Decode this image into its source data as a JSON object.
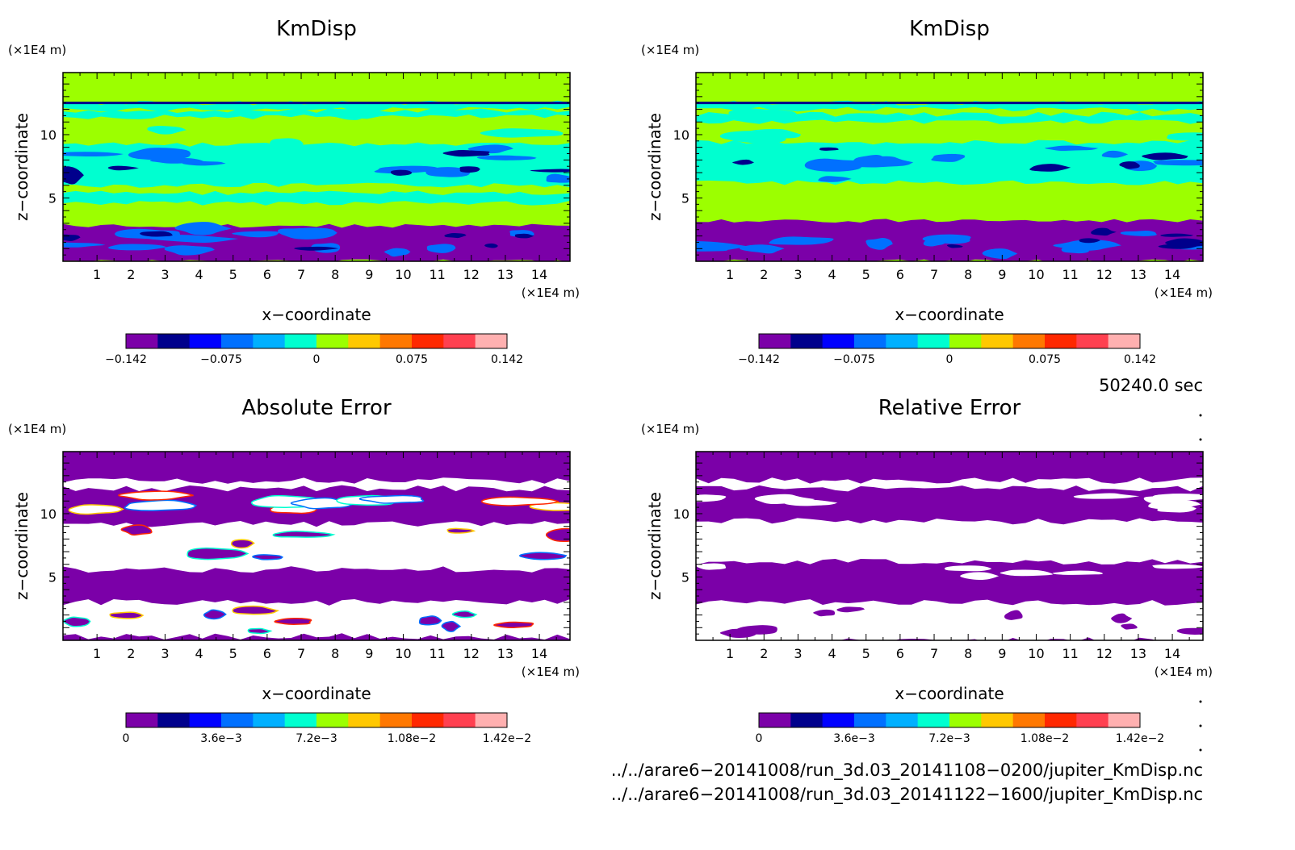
{
  "panels": [
    {
      "title": "KmDisp",
      "x_unit": "(×1E4 m)",
      "z_unit": "(×1E4 m)",
      "xlabel": "x−coordinate",
      "ylabel": "z−coordinate",
      "colorbar_ticks": [
        "−0.142",
        "−0.075",
        "0",
        "0.075",
        "0.142"
      ]
    },
    {
      "title": "KmDisp",
      "x_unit": "(×1E4 m)",
      "z_unit": "(×1E4 m)",
      "xlabel": "x−coordinate",
      "ylabel": "z−coordinate",
      "colorbar_ticks": [
        "−0.142",
        "−0.075",
        "0",
        "0.075",
        "0.142"
      ]
    },
    {
      "title": "Absolute Error",
      "x_unit": "(×1E4 m)",
      "z_unit": "(×1E4 m)",
      "xlabel": "x−coordinate",
      "ylabel": "z−coordinate",
      "colorbar_ticks": [
        "0",
        "3.6e−3",
        "7.2e−3",
        "1.08e−2",
        "1.42e−2"
      ]
    },
    {
      "title": "Relative Error",
      "x_unit": "(×1E4 m)",
      "z_unit": "(×1E4 m)",
      "xlabel": "x−coordinate",
      "ylabel": "z−coordinate",
      "colorbar_ticks": [
        "0",
        "3.6e−3",
        "7.2e−3",
        "1.08e−2",
        "1.42e−2"
      ]
    }
  ],
  "time_label": "50240.0 sec",
  "file_paths": [
    "../../arare6−20141008/run_3d.03_20141108−0200/jupiter_KmDisp.nc",
    "../../arare6−20141008/run_3d.03_20141122−1600/jupiter_KmDisp.nc"
  ],
  "colorbar_colors": [
    "#7b00a8",
    "#00008c",
    "#0000ff",
    "#0070ff",
    "#00b0ff",
    "#00ffd0",
    "#9cff00",
    "#ffc800",
    "#ff7800",
    "#ff2800",
    "#ff4050",
    "#ffb0b0"
  ],
  "chart_data": [
    {
      "type": "heatmap",
      "title": "KmDisp",
      "xlabel": "x−coordinate",
      "ylabel": "z−coordinate",
      "xlim": [
        0,
        14.9
      ],
      "ylim": [
        0,
        14.9
      ],
      "xticks": [
        1,
        2,
        3,
        4,
        5,
        6,
        7,
        8,
        9,
        10,
        11,
        12,
        13,
        14
      ],
      "yticks": [
        5,
        10
      ],
      "colorbar_range": [
        -0.142,
        0.142
      ],
      "colorbar_ticks": [
        -0.142,
        -0.075,
        0,
        0.075,
        0.142
      ],
      "regions": [
        {
          "z_range": [
            0,
            2.8
          ],
          "value": -0.142,
          "note": "purple lower layer with blue eddies"
        },
        {
          "z_range": [
            2.8,
            14.9
          ],
          "value": 0.01,
          "note": "green background with cyan/blue bands near z≈5, 7–9, 12"
        }
      ]
    },
    {
      "type": "heatmap",
      "title": "KmDisp",
      "xlabel": "x−coordinate",
      "ylabel": "z−coordinate",
      "xlim": [
        0,
        14.9
      ],
      "ylim": [
        0,
        14.9
      ],
      "xticks": [
        1,
        2,
        3,
        4,
        5,
        6,
        7,
        8,
        9,
        10,
        11,
        12,
        13,
        14
      ],
      "yticks": [
        5,
        10
      ],
      "colorbar_range": [
        -0.142,
        0.142
      ],
      "colorbar_ticks": [
        -0.142,
        -0.075,
        0,
        0.075,
        0.142
      ],
      "regions": [
        {
          "z_range": [
            0,
            3.2
          ],
          "value": -0.142,
          "note": "purple lower layer with blue eddies"
        },
        {
          "z_range": [
            3.2,
            14.9
          ],
          "value": 0.01,
          "note": "green background with cyan/blue bands near z≈6–9, 12"
        }
      ]
    },
    {
      "type": "heatmap",
      "title": "Absolute Error",
      "xlabel": "x−coordinate",
      "ylabel": "z−coordinate",
      "xlim": [
        0,
        14.9
      ],
      "ylim": [
        0,
        14.9
      ],
      "xticks": [
        1,
        2,
        3,
        4,
        5,
        6,
        7,
        8,
        9,
        10,
        11,
        12,
        13,
        14
      ],
      "yticks": [
        5,
        10
      ],
      "colorbar_range": [
        0,
        0.0142
      ],
      "colorbar_ticks": [
        0,
        0.0036,
        0.0072,
        0.0108,
        0.0142
      ],
      "regions": [
        {
          "z_range": [
            0,
            3
          ],
          "value": "mixed",
          "note": "white patches with colored outlines"
        },
        {
          "z_range": [
            3,
            5.6
          ],
          "value": 0
        },
        {
          "z_range": [
            5.6,
            9.5
          ],
          "value": "mixed",
          "note": "white patches with colored outlines"
        },
        {
          "z_range": [
            9.5,
            12
          ],
          "value": 0
        },
        {
          "z_range": [
            12,
            12.6
          ],
          "value": "mixed"
        },
        {
          "z_range": [
            12.6,
            14.9
          ],
          "value": 0
        }
      ]
    },
    {
      "type": "heatmap",
      "title": "Relative Error",
      "xlabel": "x−coordinate",
      "ylabel": "z−coordinate",
      "xlim": [
        0,
        14.9
      ],
      "ylim": [
        0,
        14.9
      ],
      "xticks": [
        1,
        2,
        3,
        4,
        5,
        6,
        7,
        8,
        9,
        10,
        11,
        12,
        13,
        14
      ],
      "yticks": [
        5,
        10
      ],
      "colorbar_range": [
        0,
        0.0142
      ],
      "colorbar_ticks": [
        0,
        0.0036,
        0.0072,
        0.0108,
        0.0142
      ],
      "regions": [
        {
          "z_range": [
            0,
            3
          ],
          "value": "white",
          "note": "mostly white with purple patches"
        },
        {
          "z_range": [
            3,
            6
          ],
          "value": 0
        },
        {
          "z_range": [
            6,
            9.5
          ],
          "value": "white"
        },
        {
          "z_range": [
            9.5,
            12
          ],
          "value": 0
        },
        {
          "z_range": [
            12,
            12.6
          ],
          "value": "white"
        },
        {
          "z_range": [
            12.6,
            14.9
          ],
          "value": 0
        }
      ]
    }
  ]
}
